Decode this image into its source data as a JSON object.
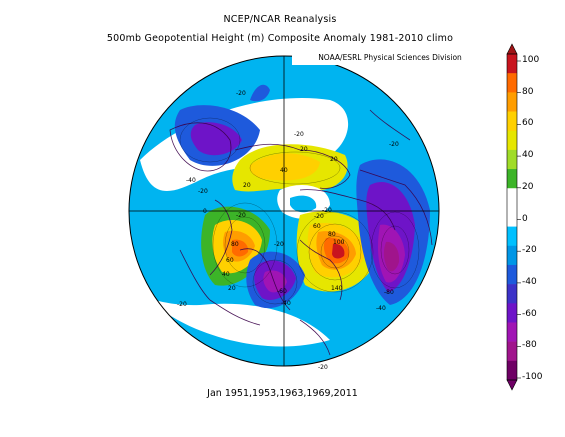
{
  "title": {
    "line1": "NCEP/NCAR Reanalysis",
    "line2": "500mb Geopotential Height (m) Composite Anomaly 1981-2010 climo"
  },
  "credit": "NOAA/ESRL Physical Sciences Division",
  "caption": "Jan 1951,1953,1963,1969,2011",
  "map_contour_labels": [
    "-20",
    "-20",
    "-20",
    "-40",
    "-20",
    "40",
    "20",
    "20",
    "20",
    "-20",
    "80",
    "60",
    "40",
    "20",
    "0",
    "-20",
    "-60",
    "-40",
    "-20",
    "-20",
    "60",
    "80",
    "100",
    "140",
    "-80",
    "-40",
    "-20",
    "-20"
  ],
  "colorbar": {
    "ticks": [
      "100",
      "80",
      "60",
      "40",
      "20",
      "0",
      "-20",
      "-40",
      "-60",
      "-80",
      "-100"
    ],
    "colors": [
      "#c8141e",
      "#ff6a00",
      "#ff9d00",
      "#ffd000",
      "#e6e600",
      "#a0dc28",
      "#3cb428",
      "#ffffff",
      "#ffffff",
      "#00c0ff",
      "#0096e6",
      "#1e5adc",
      "#3c32c8",
      "#6e14c8",
      "#a014b4",
      "#a0148c",
      "#6e0064"
    ]
  }
}
